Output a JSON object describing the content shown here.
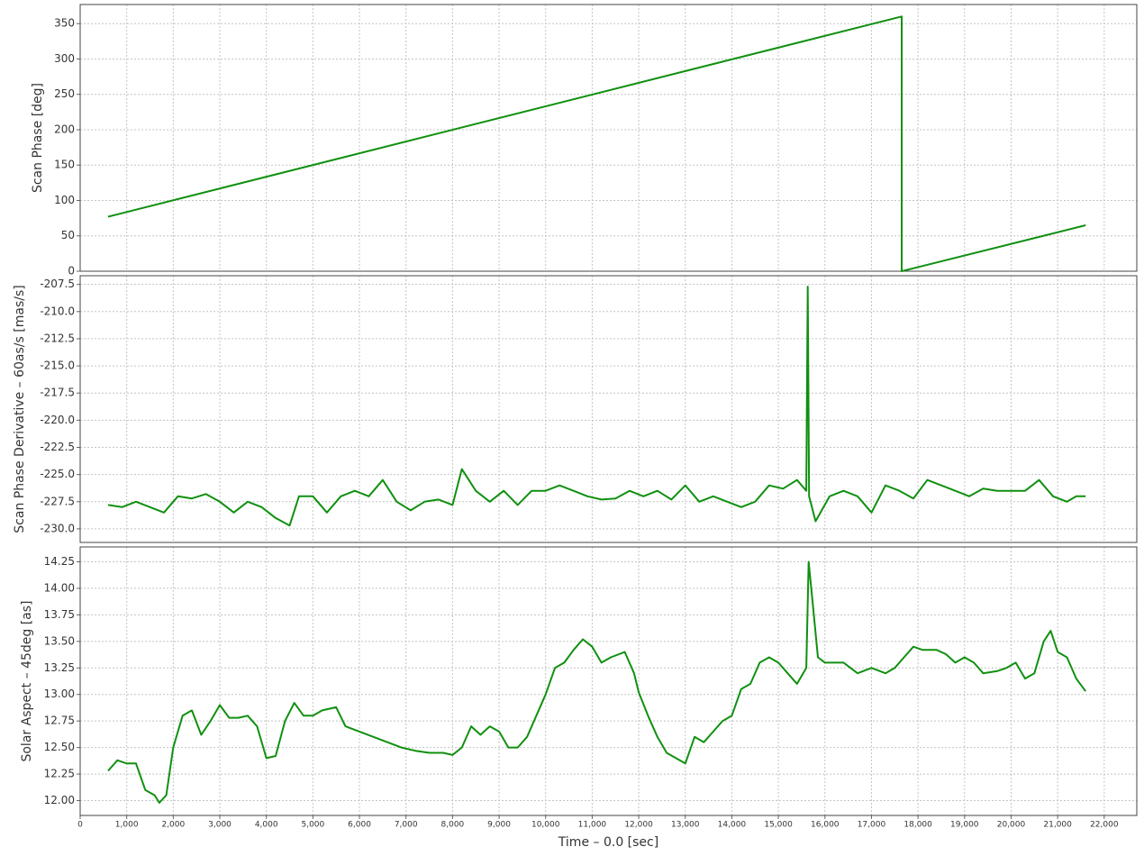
{
  "chart_data": [
    {
      "type": "line",
      "ylabel": "Scan Phase [deg]",
      "color": "#109010",
      "grid": true,
      "xlim": [
        0,
        22700
      ],
      "ylim": [
        0,
        377
      ],
      "xticks": [
        0,
        1000,
        2000,
        3000,
        4000,
        5000,
        6000,
        7000,
        8000,
        9000,
        10000,
        11000,
        12000,
        13000,
        14000,
        15000,
        16000,
        17000,
        18000,
        19000,
        20000,
        21000,
        22000
      ],
      "yticks": [
        0,
        50,
        100,
        150,
        200,
        250,
        300,
        350
      ],
      "x": [
        600,
        17650,
        17650,
        21600
      ],
      "values": [
        77,
        360,
        0,
        65
      ]
    },
    {
      "type": "line",
      "ylabel": "Scan Phase Derivative – 60as/s [mas/s]",
      "color": "#109010",
      "grid": true,
      "xlim": [
        0,
        22700
      ],
      "ylim": [
        -231.25,
        -206.7
      ],
      "xticks": [
        0,
        1000,
        2000,
        3000,
        4000,
        5000,
        6000,
        7000,
        8000,
        9000,
        10000,
        11000,
        12000,
        13000,
        14000,
        15000,
        16000,
        17000,
        18000,
        19000,
        20000,
        21000,
        22000
      ],
      "yticks": [
        -207.5,
        {
          "value": -210,
          "label": "-210.0"
        },
        -212.5,
        {
          "value": -215,
          "label": "-215.0"
        },
        -217.5,
        {
          "value": -220,
          "label": "-220.0"
        },
        -222.5,
        {
          "value": -225,
          "label": "-225.0"
        },
        -227.5,
        {
          "value": -230,
          "label": "-230.0"
        }
      ],
      "x": [
        600,
        900,
        1200,
        1500,
        1800,
        2100,
        2400,
        2700,
        3000,
        3300,
        3600,
        3900,
        4200,
        4500,
        4700,
        5000,
        5300,
        5600,
        5900,
        6200,
        6500,
        6800,
        7100,
        7400,
        7700,
        8000,
        8200,
        8500,
        8800,
        9100,
        9400,
        9700,
        10000,
        10300,
        10600,
        10900,
        11200,
        11500,
        11800,
        12100,
        12400,
        12700,
        13000,
        13300,
        13600,
        13900,
        14200,
        14500,
        14800,
        15100,
        15400,
        15600,
        15630,
        15660,
        15800,
        16100,
        16400,
        16700,
        17000,
        17300,
        17600,
        17900,
        18200,
        18500,
        18800,
        19100,
        19400,
        19700,
        20000,
        20300,
        20600,
        20900,
        21200,
        21400,
        21600
      ],
      "values": [
        -227.8,
        -228,
        -227.5,
        -228,
        -228.5,
        -227,
        -227.2,
        -226.8,
        -227.5,
        -228.5,
        -227.5,
        -228,
        -229,
        -229.7,
        -227,
        -227,
        -228.5,
        -227,
        -226.5,
        -227,
        -225.5,
        -227.5,
        -228.3,
        -227.5,
        -227.3,
        -227.8,
        -224.5,
        -226.5,
        -227.5,
        -226.5,
        -227.8,
        -226.5,
        -226.5,
        -226,
        -226.5,
        -227,
        -227.3,
        -227.2,
        -226.5,
        -227,
        -226.5,
        -227.3,
        -226,
        -227.5,
        -227,
        -227.5,
        -228,
        -227.5,
        -226,
        -226.3,
        -225.5,
        -226.5,
        -207.7,
        -227,
        -229.3,
        -227,
        -226.5,
        -227,
        -228.5,
        -226,
        -226.5,
        -227.2,
        -225.5,
        -226,
        -226.5,
        -227,
        -226.3,
        -226.5,
        -226.5,
        -226.5,
        -225.5,
        -227,
        -227.5,
        -227,
        -227
      ]
    },
    {
      "type": "line",
      "ylabel": "Solar Aspect – 45deg [as]",
      "xlabel": "Time – 0.0 [sec]",
      "color": "#109010",
      "grid": true,
      "xlim": [
        0,
        22700
      ],
      "ylim": [
        11.86,
        14.39
      ],
      "xticks": [
        0,
        {
          "value": 1000,
          "label": "1,000"
        },
        {
          "value": 2000,
          "label": "2,000"
        },
        {
          "value": 3000,
          "label": "3,000"
        },
        {
          "value": 4000,
          "label": "4,000"
        },
        {
          "value": 5000,
          "label": "5,000"
        },
        {
          "value": 6000,
          "label": "6,000"
        },
        {
          "value": 7000,
          "label": "7,000"
        },
        {
          "value": 8000,
          "label": "8,000"
        },
        {
          "value": 9000,
          "label": "9,000"
        },
        {
          "value": 10000,
          "label": "10,000"
        },
        {
          "value": 11000,
          "label": "11,000"
        },
        {
          "value": 12000,
          "label": "12,000"
        },
        {
          "value": 13000,
          "label": "13,000"
        },
        {
          "value": 14000,
          "label": "14,000"
        },
        {
          "value": 15000,
          "label": "15,000"
        },
        {
          "value": 16000,
          "label": "16,000"
        },
        {
          "value": 17000,
          "label": "17,000"
        },
        {
          "value": 18000,
          "label": "18,000"
        },
        {
          "value": 19000,
          "label": "19,000"
        },
        {
          "value": 20000,
          "label": "20,000"
        },
        {
          "value": 21000,
          "label": "21,000"
        },
        {
          "value": 22000,
          "label": "22,000"
        }
      ],
      "yticks": [
        {
          "value": 12,
          "label": "12.00"
        },
        12.25,
        {
          "value": 12.5,
          "label": "12.50"
        },
        12.75,
        {
          "value": 13,
          "label": "13.00"
        },
        13.25,
        {
          "value": 13.5,
          "label": "13.50"
        },
        13.75,
        {
          "value": 14,
          "label": "14.00"
        },
        14.25
      ],
      "x": [
        600,
        800,
        1000,
        1200,
        1400,
        1600,
        1700,
        1850,
        2000,
        2200,
        2400,
        2600,
        2800,
        3000,
        3200,
        3400,
        3600,
        3800,
        4000,
        4200,
        4400,
        4600,
        4800,
        5000,
        5200,
        5500,
        5700,
        6000,
        6300,
        6600,
        6900,
        7200,
        7500,
        7800,
        8000,
        8200,
        8400,
        8600,
        8800,
        9000,
        9200,
        9400,
        9600,
        9800,
        10000,
        10200,
        10400,
        10600,
        10800,
        11000,
        11200,
        11400,
        11700,
        11900,
        12000,
        12200,
        12400,
        12600,
        12800,
        13000,
        13200,
        13400,
        13600,
        13800,
        14000,
        14200,
        14400,
        14600,
        14800,
        15000,
        15200,
        15400,
        15600,
        15650,
        15750,
        15850,
        16000,
        16400,
        16700,
        17000,
        17300,
        17500,
        17700,
        17900,
        18100,
        18400,
        18600,
        18800,
        19000,
        19200,
        19400,
        19700,
        19900,
        20100,
        20300,
        20500,
        20700,
        20850,
        21000,
        21200,
        21400,
        21600
      ],
      "values": [
        12.28,
        12.38,
        12.35,
        12.35,
        12.1,
        12.05,
        11.98,
        12.05,
        12.5,
        12.8,
        12.85,
        12.62,
        12.75,
        12.9,
        12.78,
        12.78,
        12.8,
        12.7,
        12.4,
        12.42,
        12.75,
        12.92,
        12.8,
        12.8,
        12.85,
        12.88,
        12.7,
        12.65,
        12.6,
        12.55,
        12.5,
        12.47,
        12.45,
        12.45,
        12.43,
        12.5,
        12.7,
        12.62,
        12.7,
        12.65,
        12.5,
        12.5,
        12.6,
        12.8,
        13.0,
        13.25,
        13.3,
        13.42,
        13.52,
        13.45,
        13.3,
        13.35,
        13.4,
        13.2,
        13.02,
        12.8,
        12.6,
        12.45,
        12.4,
        12.35,
        12.6,
        12.55,
        12.65,
        12.75,
        12.8,
        13.05,
        13.1,
        13.3,
        13.35,
        13.3,
        13.2,
        13.1,
        13.25,
        14.25,
        13.8,
        13.35,
        13.3,
        13.3,
        13.2,
        13.25,
        13.2,
        13.25,
        13.35,
        13.45,
        13.42,
        13.42,
        13.38,
        13.3,
        13.35,
        13.3,
        13.2,
        13.22,
        13.25,
        13.3,
        13.15,
        13.2,
        13.5,
        13.6,
        13.4,
        13.35,
        13.15,
        13.03
      ]
    }
  ]
}
